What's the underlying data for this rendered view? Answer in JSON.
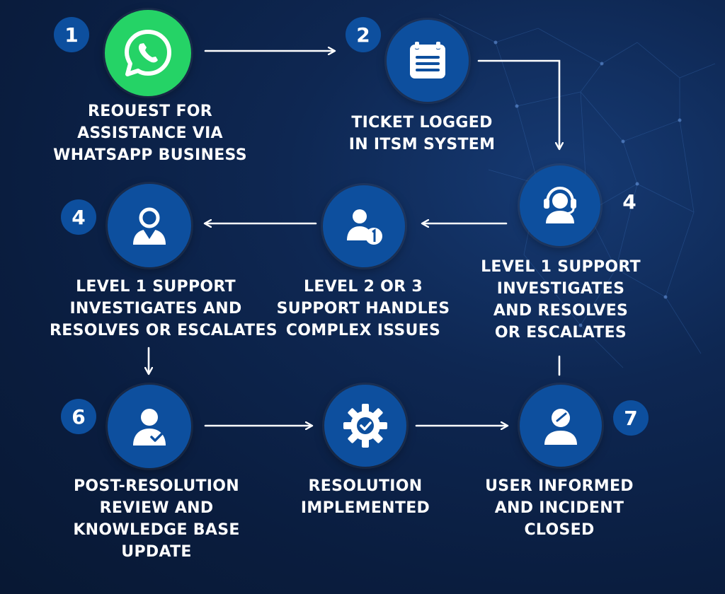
{
  "steps": [
    {
      "badge": "1",
      "icon": "whatsapp-icon",
      "lines": [
        "REOUEST FOR",
        "ASSISTANCE VIA",
        "WHATSAPP BUSINESS"
      ]
    },
    {
      "badge": "2",
      "icon": "calendar-list-icon",
      "lines": [
        "TICKET LOGGED",
        "IN ITSM SYSTEM"
      ]
    },
    {
      "badge": "4",
      "icon": "headset-agent-icon",
      "lines": [
        "LEVEL 1 SUPPORT",
        "INVESTIGATES",
        "AND RESOLVES",
        "OR ESCALATES"
      ]
    },
    {
      "icon": "user-number-one-icon",
      "lines": [
        "LEVEL 2 OR 3",
        "SUPPORT HANDLES",
        "COMPLEX ISSUES"
      ]
    },
    {
      "badge": "4",
      "icon": "user-icon",
      "lines": [
        "LEVEL 1 SUPPORT",
        "INVESTIGATES AND",
        "RESOLVES OR ESCALATES"
      ]
    },
    {
      "badge": "6",
      "icon": "user-check-icon",
      "lines": [
        "POST-RESOLUTION",
        "REVIEW AND",
        "KNOWLEDGE BASE",
        "UPDATE"
      ]
    },
    {
      "icon": "gear-check-icon",
      "lines": [
        "RESOLUTION",
        "IMPLEMENTED"
      ]
    },
    {
      "badge": "7",
      "icon": "user-closed-icon",
      "lines": [
        "USER INFORMED",
        "AND INCIDENT",
        "CLOSED"
      ]
    }
  ],
  "colors": {
    "circle": "#0d4f9e",
    "whatsapp": "#25d366",
    "background": "#0a1d3f",
    "text": "#ffffff"
  }
}
